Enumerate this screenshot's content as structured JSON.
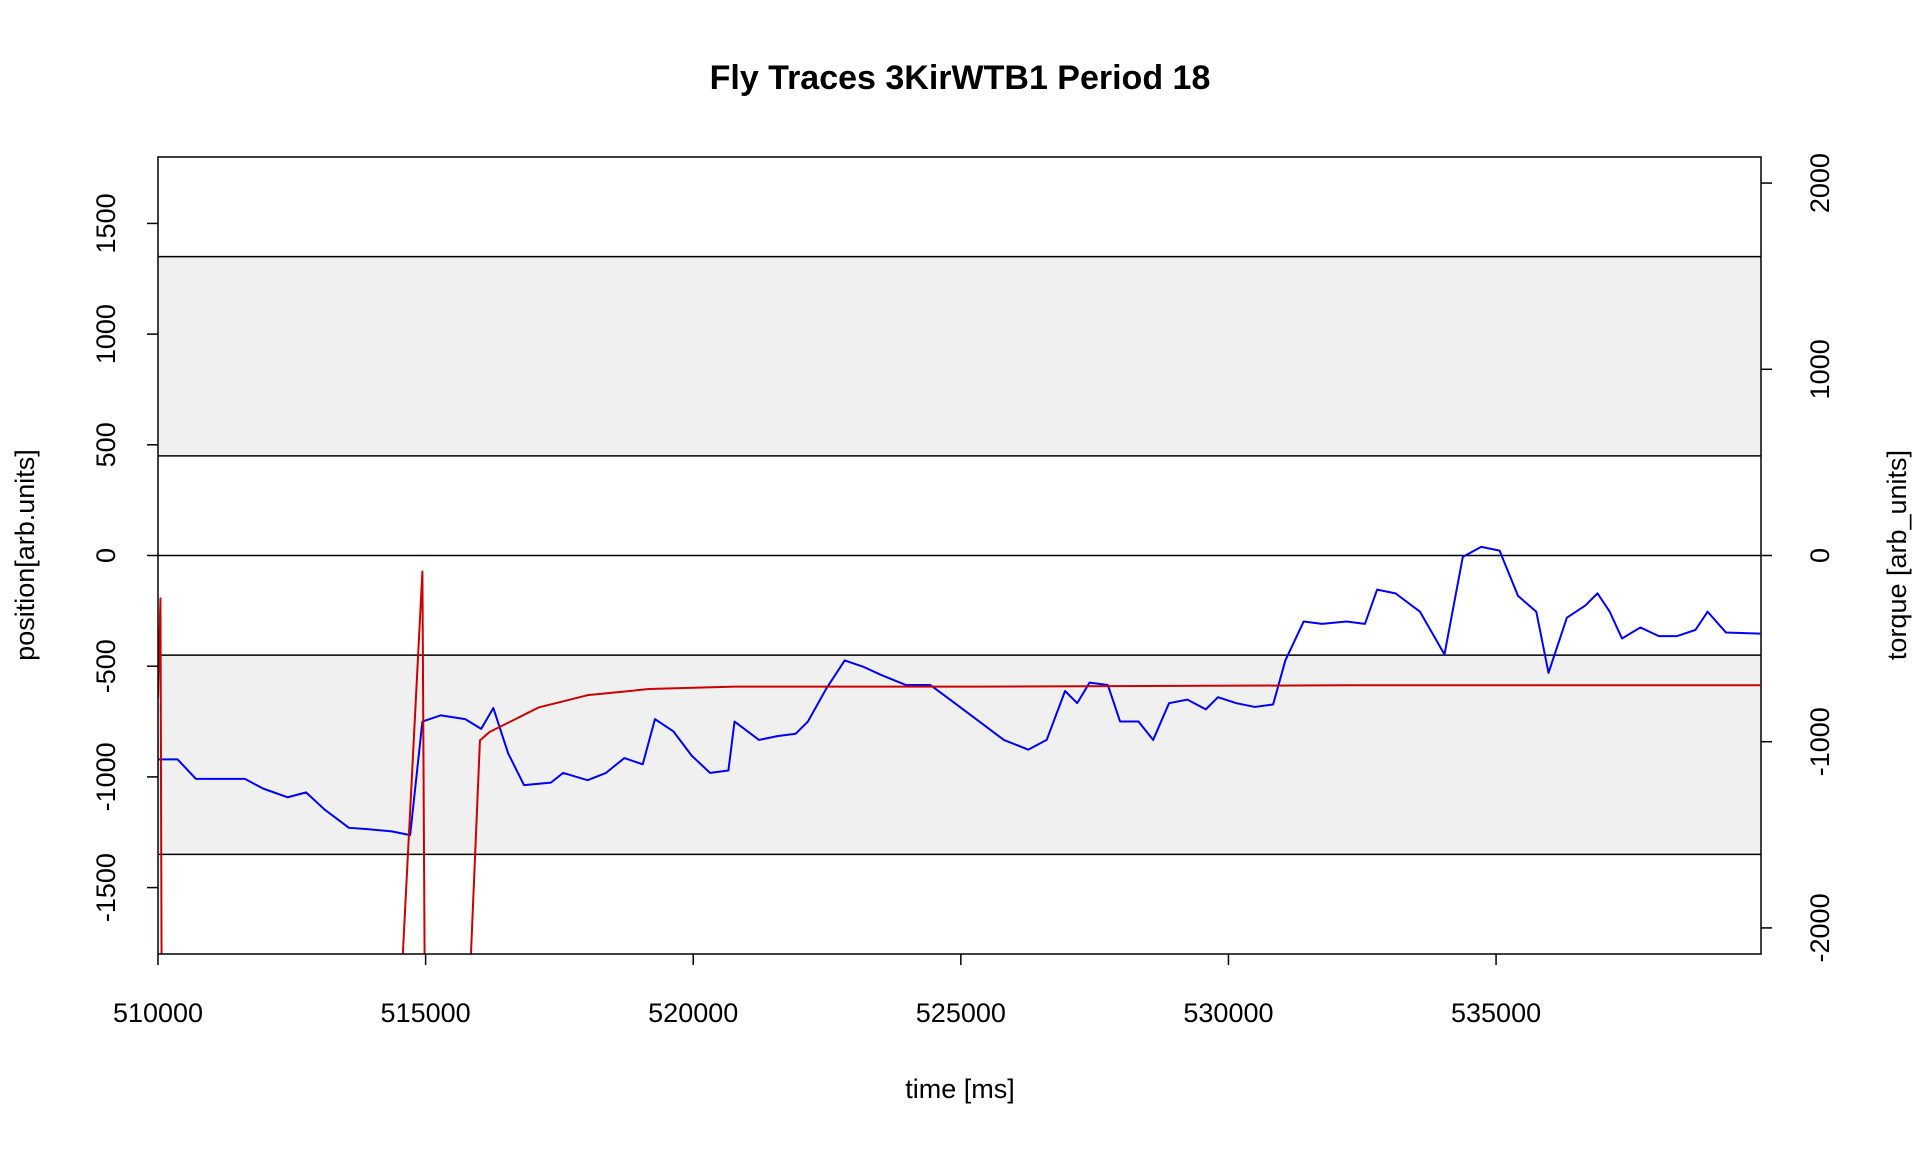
{
  "chart_data": {
    "type": "line",
    "title": "Fly Traces 3KirWTB1 Period 18",
    "xlabel": "time [ms]",
    "ylabel": "position[arb.units]",
    "y2label": "torque [arb_units]",
    "xlim": [
      510000,
      539950
    ],
    "xticks": [
      510000,
      515000,
      520000,
      525000,
      530000,
      535000
    ],
    "ylim": [
      -1800,
      1800
    ],
    "yticks": [
      -1500,
      -1000,
      -500,
      0,
      500,
      1000,
      1500
    ],
    "y2lim": [
      -2140,
      2140
    ],
    "y2ticks": [
      -2000,
      -1000,
      0,
      1000,
      2000
    ],
    "hlines": [
      1350,
      450,
      0,
      -450,
      -1350
    ],
    "bands": [
      [
        -1350,
        -450
      ],
      [
        450,
        1350
      ]
    ],
    "band_color": "#f0f0f0",
    "series": [
      {
        "color": "#0000ff",
        "axis": "y",
        "x": [
          510000,
          510366,
          510709,
          511166,
          511624,
          511967,
          512424,
          512767,
          513110,
          513568,
          513911,
          514368,
          514711,
          514940,
          515283,
          515740,
          516038,
          516266,
          516541,
          516838,
          517341,
          517570,
          518027,
          518370,
          518713,
          519057,
          519285,
          519628,
          519971,
          520314,
          520657,
          520772,
          521229,
          521572,
          521915,
          522143,
          522487,
          522830,
          523173,
          523516,
          523973,
          524431,
          524888,
          525346,
          525803,
          526261,
          526604,
          526947,
          527175,
          527404,
          527747,
          527976,
          528319,
          528593,
          528890,
          529233,
          529577,
          529805,
          530148,
          530492,
          530834,
          531063,
          531406,
          531749,
          532207,
          532550,
          532778,
          533121,
          533579,
          534036,
          534379,
          534722,
          535066,
          535409,
          535752,
          535980,
          536323,
          536667,
          536895,
          537124,
          537353,
          537696,
          538039,
          538382,
          538725,
          538953,
          539296,
          539936
        ],
        "values": [
          -921,
          -921,
          -1009,
          -1009,
          -1009,
          -1053,
          -1092,
          -1070,
          -1147,
          -1230,
          -1236,
          -1246,
          -1263,
          -750,
          -722,
          -739,
          -783,
          -689,
          -893,
          -1037,
          -1026,
          -982,
          -1015,
          -982,
          -915,
          -943,
          -739,
          -794,
          -904,
          -982,
          -971,
          -750,
          -833,
          -816,
          -805,
          -750,
          -601,
          -474,
          -502,
          -540,
          -585,
          -585,
          -667,
          -750,
          -833,
          -877,
          -833,
          -612,
          -667,
          -574,
          -585,
          -750,
          -750,
          -833,
          -667,
          -651,
          -695,
          -640,
          -667,
          -684,
          -673,
          -474,
          -298,
          -309,
          -298,
          -309,
          -154,
          -171,
          -254,
          -447,
          -6,
          39,
          22,
          -182,
          -254,
          -530,
          -281,
          -226,
          -171,
          -254,
          -375,
          -325,
          -364,
          -364,
          -336,
          -254,
          -348,
          -353
        ]
      },
      {
        "color": "#cc0000",
        "axis": "y2",
        "x": [
          510000,
          510046,
          510069,
          514528,
          514940,
          514986,
          515809,
          516015,
          516198,
          516655,
          517112,
          517570,
          518027,
          518485,
          519171,
          520772,
          525346,
          532207,
          539936
        ],
        "values": [
          -763,
          -230,
          -2400,
          -2400,
          -86,
          -2400,
          -2400,
          -993,
          -947,
          -882,
          -816,
          -783,
          -750,
          -737,
          -717,
          -704,
          -704,
          -697,
          -697
        ]
      }
    ]
  }
}
